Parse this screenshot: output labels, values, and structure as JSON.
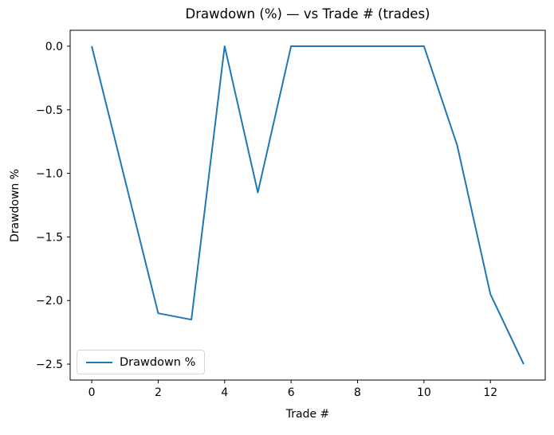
{
  "chart_data": {
    "type": "line",
    "title": "Drawdown (%) — vs Trade # (trades)",
    "xlabel": "Trade #",
    "ylabel": "Drawdown %",
    "x": [
      0,
      1,
      2,
      3,
      4,
      5,
      6,
      7,
      8,
      9,
      10,
      11,
      12,
      13
    ],
    "series": [
      {
        "name": "Drawdown %",
        "color": "#1f77b4",
        "values": [
          0.0,
          -1.05,
          -2.1,
          -2.15,
          0.0,
          -1.15,
          0.0,
          0.0,
          0.0,
          0.0,
          0.0,
          -0.78,
          -1.95,
          -2.5
        ]
      }
    ],
    "xlim": [
      -0.65,
      13.65
    ],
    "ylim": [
      -2.625,
      0.125
    ],
    "xticks": {
      "values": [
        0,
        2,
        4,
        6,
        8,
        10,
        12
      ],
      "labels": [
        "0",
        "2",
        "4",
        "6",
        "8",
        "10",
        "12"
      ]
    },
    "yticks": {
      "values": [
        0.0,
        -0.5,
        -1.0,
        -1.5,
        -2.0,
        -2.5
      ],
      "labels": [
        "0.0",
        "−0.5",
        "−1.0",
        "−1.5",
        "−2.0",
        "−2.5"
      ]
    },
    "legend": {
      "position": "lower left",
      "entries": [
        "Drawdown %"
      ]
    },
    "grid": false,
    "axis_color": "#000000",
    "background_color": "#ffffff"
  }
}
